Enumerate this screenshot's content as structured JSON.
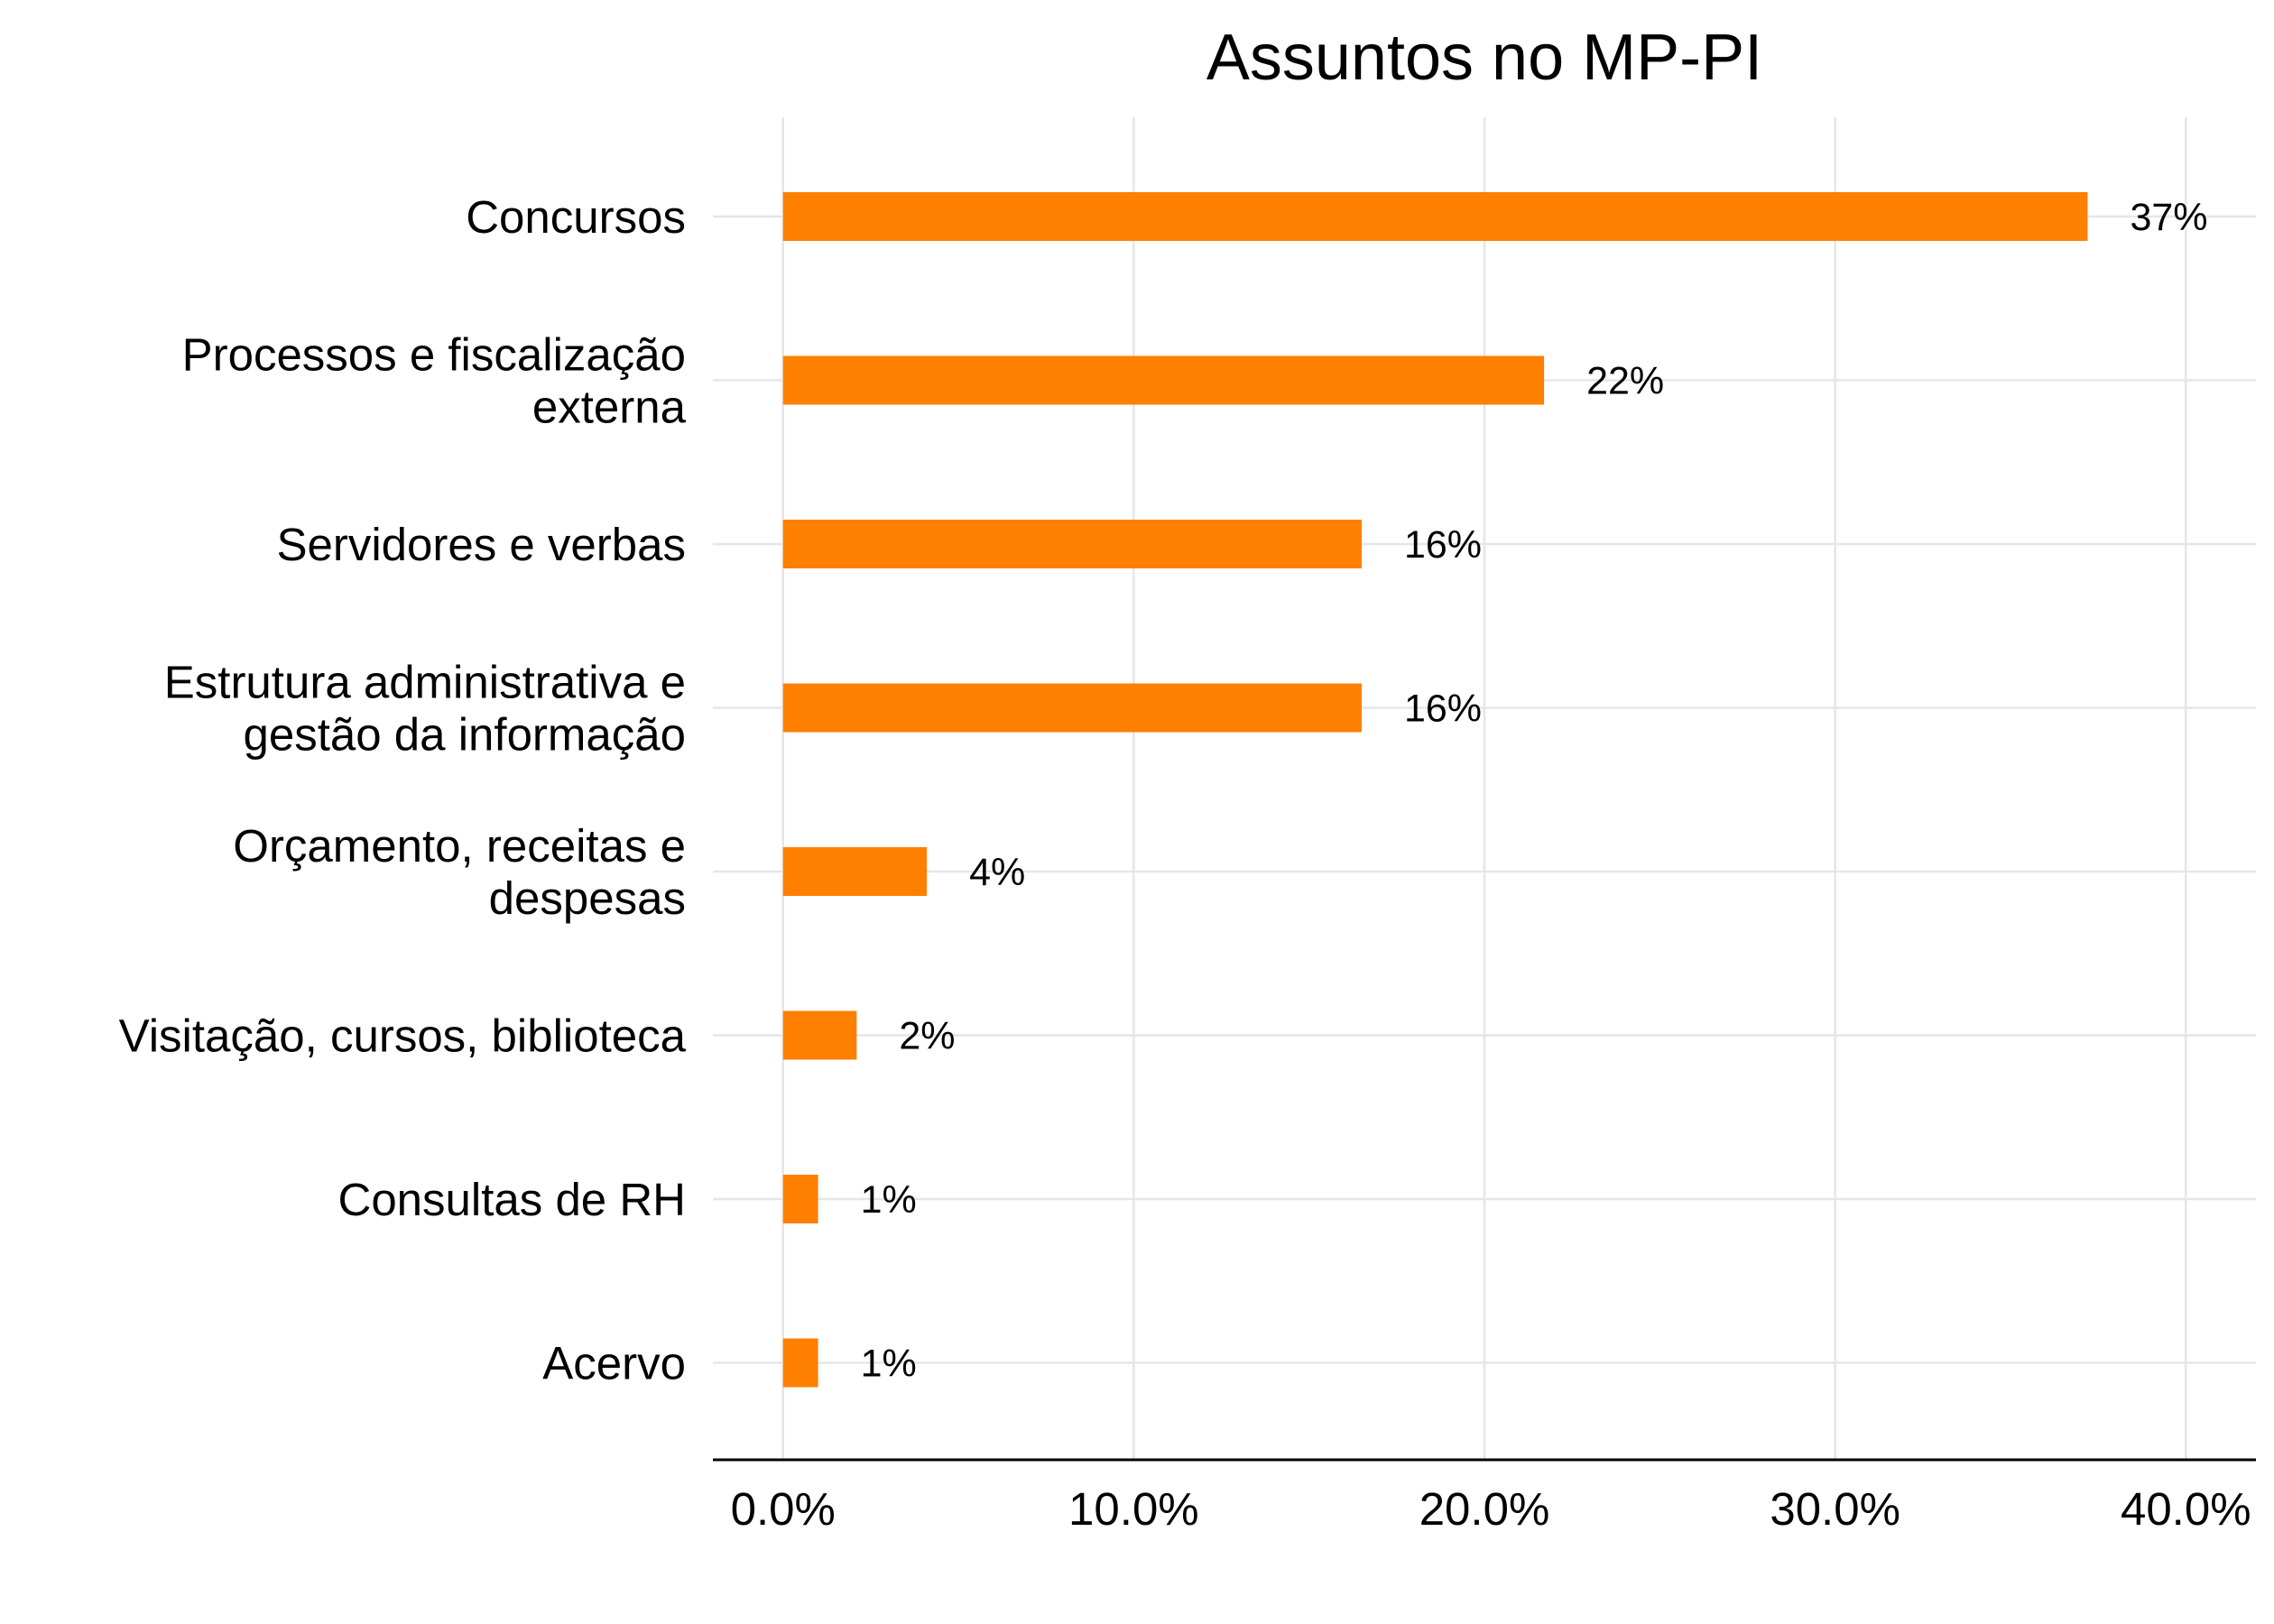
{
  "chart_data": {
    "type": "bar",
    "orientation": "horizontal",
    "title": "Assuntos no MP-PI",
    "xlabel": "",
    "ylabel": "",
    "categories": [
      [
        "Concursos"
      ],
      [
        "Processos e fiscalização",
        "externa"
      ],
      [
        "Servidores e verbas"
      ],
      [
        "Estrutura administrativa e",
        "gestão da informação"
      ],
      [
        "Orçamento, receitas e",
        "despesas"
      ],
      [
        "Visitação, cursos, biblioteca"
      ],
      [
        "Consultas de RH"
      ],
      [
        "Acervo"
      ]
    ],
    "values": [
      37.2,
      21.7,
      16.5,
      16.5,
      4.1,
      2.1,
      1.0,
      1.0
    ],
    "value_labels": [
      "37%",
      "22%",
      "16%",
      "16%",
      "4%",
      "2%",
      "1%",
      "1%"
    ],
    "xlim": [
      -2,
      42
    ],
    "x_ticks": [
      0,
      10,
      20,
      30,
      40
    ],
    "x_tick_labels": [
      "0.0%",
      "10.0%",
      "20.0%",
      "30.0%",
      "40.0%"
    ],
    "grid": true,
    "legend": "none",
    "bar_color": "#FF7F00"
  }
}
